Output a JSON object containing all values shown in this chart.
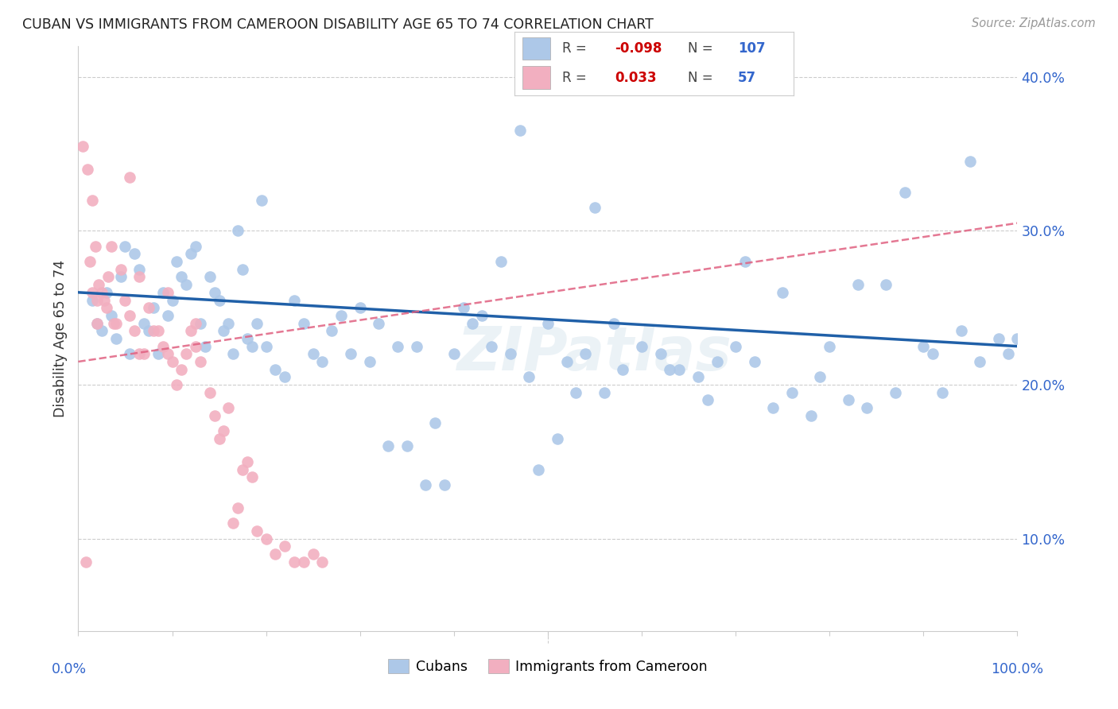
{
  "title": "CUBAN VS IMMIGRANTS FROM CAMEROON DISABILITY AGE 65 TO 74 CORRELATION CHART",
  "source": "Source: ZipAtlas.com",
  "ylabel": "Disability Age 65 to 74",
  "watermark": "ZIPatlas",
  "legend_label1": "Cubans",
  "legend_label2": "Immigrants from Cameroon",
  "R1": "-0.098",
  "N1": "107",
  "R2": "0.033",
  "N2": "57",
  "blue_color": "#adc8e8",
  "pink_color": "#f2afc0",
  "blue_line_color": "#2060a8",
  "pink_line_color": "#e06080",
  "grid_color": "#cccccc",
  "background_color": "#ffffff",
  "xlim": [
    0,
    100
  ],
  "ylim": [
    4,
    42
  ],
  "ytick_positions": [
    10,
    20,
    30,
    40
  ],
  "ytick_labels": [
    "10.0%",
    "20.0%",
    "30.0%",
    "40.0%"
  ],
  "blue_scatter_x": [
    1.5,
    2.0,
    2.5,
    3.0,
    3.5,
    4.0,
    4.5,
    5.0,
    5.5,
    6.0,
    6.5,
    7.0,
    7.5,
    8.0,
    8.5,
    9.0,
    9.5,
    10.0,
    10.5,
    11.0,
    11.5,
    12.0,
    12.5,
    13.0,
    13.5,
    14.0,
    14.5,
    15.0,
    15.5,
    16.0,
    16.5,
    17.0,
    17.5,
    18.0,
    18.5,
    19.0,
    19.5,
    20.0,
    21.0,
    22.0,
    23.0,
    24.0,
    25.0,
    26.0,
    27.0,
    28.0,
    30.0,
    32.0,
    34.0,
    36.0,
    38.0,
    40.0,
    42.0,
    44.0,
    46.0,
    48.0,
    50.0,
    52.0,
    54.0,
    56.0,
    58.0,
    60.0,
    62.0,
    64.0,
    66.0,
    68.0,
    70.0,
    72.0,
    74.0,
    76.0,
    78.0,
    80.0,
    82.0,
    84.0,
    86.0,
    88.0,
    90.0,
    92.0,
    94.0,
    96.0,
    98.0,
    100.0,
    55.0,
    57.0,
    45.0,
    47.0,
    29.0,
    31.0,
    33.0,
    35.0,
    37.0,
    39.0,
    41.0,
    43.0,
    63.0,
    67.0,
    71.0,
    75.0,
    79.0,
    83.0,
    87.0,
    91.0,
    95.0,
    99.0,
    53.0,
    49.0,
    51.0
  ],
  "blue_scatter_y": [
    25.5,
    24.0,
    23.5,
    26.0,
    24.5,
    23.0,
    27.0,
    29.0,
    22.0,
    28.5,
    27.5,
    24.0,
    23.5,
    25.0,
    22.0,
    26.0,
    24.5,
    25.5,
    28.0,
    27.0,
    26.5,
    28.5,
    29.0,
    24.0,
    22.5,
    27.0,
    26.0,
    25.5,
    23.5,
    24.0,
    22.0,
    30.0,
    27.5,
    23.0,
    22.5,
    24.0,
    32.0,
    22.5,
    21.0,
    20.5,
    25.5,
    24.0,
    22.0,
    21.5,
    23.5,
    24.5,
    25.0,
    24.0,
    22.5,
    22.5,
    17.5,
    22.0,
    24.0,
    22.5,
    22.0,
    20.5,
    24.0,
    21.5,
    22.0,
    19.5,
    21.0,
    22.5,
    22.0,
    21.0,
    20.5,
    21.5,
    22.5,
    21.5,
    18.5,
    19.5,
    18.0,
    22.5,
    19.0,
    18.5,
    26.5,
    32.5,
    22.5,
    19.5,
    23.5,
    21.5,
    23.0,
    23.0,
    31.5,
    24.0,
    28.0,
    36.5,
    22.0,
    21.5,
    16.0,
    16.0,
    13.5,
    13.5,
    25.0,
    24.5,
    21.0,
    19.0,
    28.0,
    26.0,
    20.5,
    26.5,
    19.5,
    22.0,
    34.5,
    22.0,
    19.5,
    14.5,
    16.5
  ],
  "pink_scatter_x": [
    0.5,
    0.8,
    1.0,
    1.2,
    1.5,
    1.5,
    1.8,
    2.0,
    2.0,
    2.2,
    2.5,
    2.8,
    3.0,
    3.2,
    3.5,
    3.8,
    4.0,
    4.5,
    5.0,
    5.5,
    6.0,
    6.5,
    7.0,
    7.5,
    8.0,
    8.5,
    9.0,
    9.5,
    10.0,
    10.5,
    11.0,
    11.5,
    12.0,
    12.5,
    13.0,
    14.0,
    14.5,
    15.0,
    15.5,
    16.0,
    16.5,
    17.0,
    17.5,
    18.0,
    18.5,
    19.0,
    20.0,
    21.0,
    22.0,
    23.0,
    24.0,
    25.0,
    26.0,
    5.5,
    6.5,
    9.5,
    12.5
  ],
  "pink_scatter_y": [
    35.5,
    8.5,
    34.0,
    28.0,
    32.0,
    26.0,
    29.0,
    25.5,
    24.0,
    26.5,
    26.0,
    25.5,
    25.0,
    27.0,
    29.0,
    24.0,
    24.0,
    27.5,
    25.5,
    24.5,
    23.5,
    22.0,
    22.0,
    25.0,
    23.5,
    23.5,
    22.5,
    22.0,
    21.5,
    20.0,
    21.0,
    22.0,
    23.5,
    24.0,
    21.5,
    19.5,
    18.0,
    16.5,
    17.0,
    18.5,
    11.0,
    12.0,
    14.5,
    15.0,
    14.0,
    10.5,
    10.0,
    9.0,
    9.5,
    8.5,
    8.5,
    9.0,
    8.5,
    33.5,
    27.0,
    26.0,
    22.5
  ],
  "blue_line_x": [
    0,
    100
  ],
  "blue_line_y": [
    26.0,
    22.5
  ],
  "pink_line_x": [
    0,
    100
  ],
  "pink_line_y": [
    21.5,
    30.5
  ]
}
